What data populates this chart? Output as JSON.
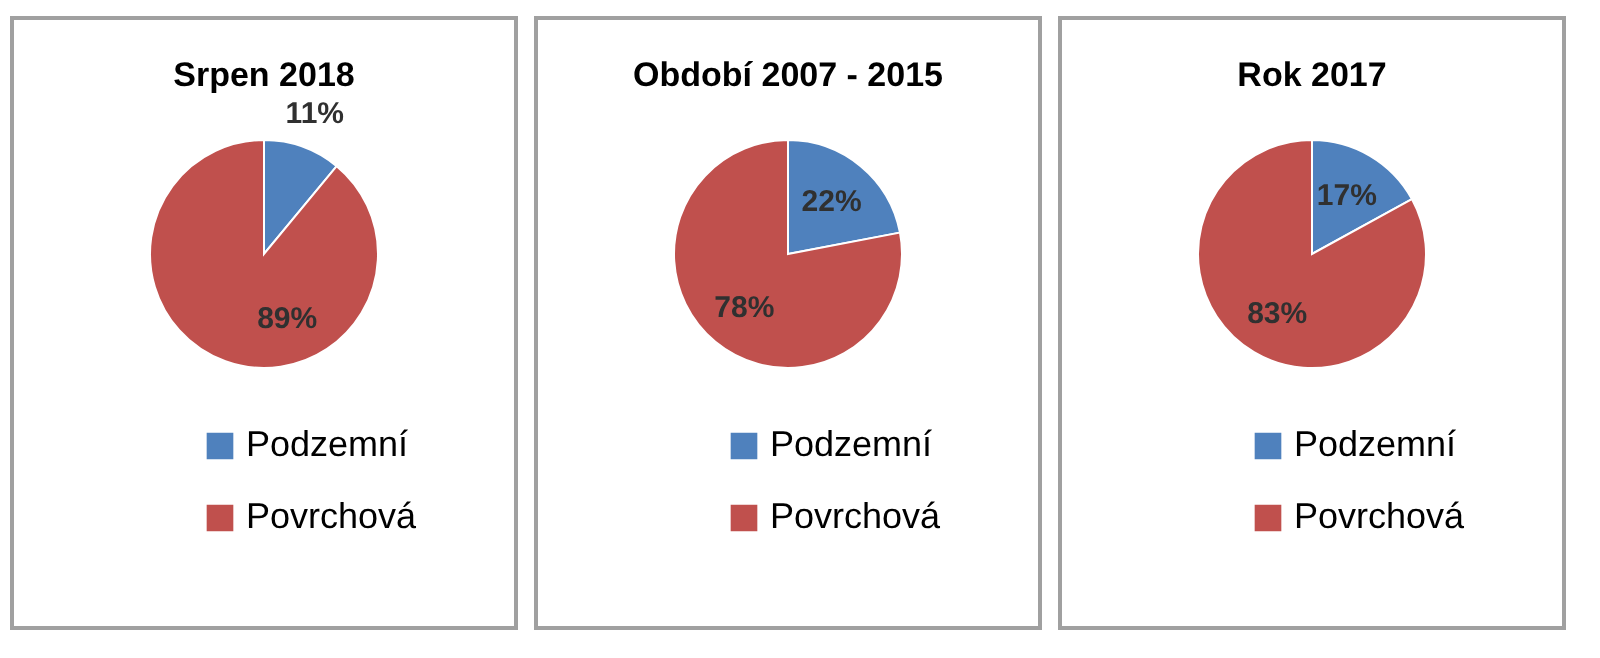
{
  "chart_data": [
    {
      "type": "pie",
      "title": "Srpen 2018",
      "categories": [
        "Podzemní",
        "Povrchová"
      ],
      "values": [
        11,
        89
      ],
      "value_labels": [
        "11%",
        "89%"
      ],
      "colors": [
        "#4f81bd",
        "#c0504d"
      ],
      "legend": "bottom"
    },
    {
      "type": "pie",
      "title": "Období 2007 - 2015",
      "categories": [
        "Podzemní",
        "Povrchová"
      ],
      "values": [
        22,
        78
      ],
      "value_labels": [
        "22%",
        "78%"
      ],
      "colors": [
        "#4f81bd",
        "#c0504d"
      ],
      "legend": "bottom"
    },
    {
      "type": "pie",
      "title": "Rok 2017",
      "categories": [
        "Podzemní",
        "Povrchová"
      ],
      "values": [
        17,
        83
      ],
      "value_labels": [
        "17%",
        "83%"
      ],
      "colors": [
        "#4f81bd",
        "#c0504d"
      ],
      "legend": "bottom"
    }
  ]
}
